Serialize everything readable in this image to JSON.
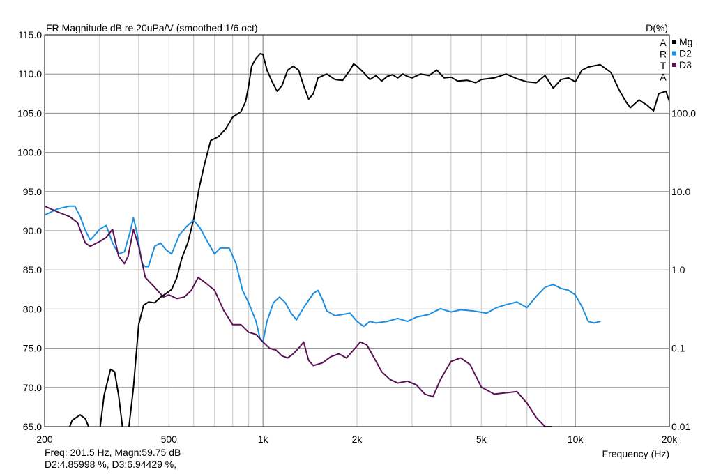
{
  "chart_data": {
    "type": "line",
    "title": "FR Magnitude dB re 20uPa/V (smoothed 1/6 oct)",
    "xlabel": "Frequency (Hz)",
    "ylabel_left": "",
    "ylabel_right": "D(%)",
    "x_scale": "log",
    "xlim": [
      200,
      20000
    ],
    "ylim": [
      65,
      115
    ],
    "y2_scale": "log",
    "y2lim": [
      0.01,
      1000
    ],
    "grid": true,
    "legend_position": "top-right",
    "x_ticks": [
      {
        "value": 200,
        "label": "200"
      },
      {
        "value": 500,
        "label": "500"
      },
      {
        "value": 1000,
        "label": "1k"
      },
      {
        "value": 2000,
        "label": "2k"
      },
      {
        "value": 5000,
        "label": "5k"
      },
      {
        "value": 10000,
        "label": "10k"
      },
      {
        "value": 20000,
        "label": "20k"
      }
    ],
    "y_ticks": [
      "65.0",
      "70.0",
      "75.0",
      "80.0",
      "85.0",
      "90.0",
      "95.0",
      "100.0",
      "105.0",
      "110.0",
      "115.0"
    ],
    "y2_ticks": [
      {
        "value": 0.01,
        "label": "0.01"
      },
      {
        "value": 0.1,
        "label": "0.1"
      },
      {
        "value": 1,
        "label": "1.0"
      },
      {
        "value": 10,
        "label": "10.0"
      },
      {
        "value": 100,
        "label": "100.0"
      }
    ],
    "watermark": [
      "A",
      "R",
      "T",
      "A"
    ],
    "series": [
      {
        "name": "Mg",
        "color": "#000000",
        "axis": "left",
        "points": [
          [
            200,
            61
          ],
          [
            230,
            63
          ],
          [
            245,
            65.8
          ],
          [
            260,
            66.5
          ],
          [
            270,
            66
          ],
          [
            280,
            64.5
          ],
          [
            295,
            62
          ],
          [
            310,
            69
          ],
          [
            325,
            72.3
          ],
          [
            335,
            72
          ],
          [
            345,
            69
          ],
          [
            355,
            65
          ],
          [
            370,
            64
          ],
          [
            385,
            70
          ],
          [
            400,
            78
          ],
          [
            415,
            80.5
          ],
          [
            430,
            80.9
          ],
          [
            450,
            80.8
          ],
          [
            470,
            81.5
          ],
          [
            490,
            82
          ],
          [
            510,
            82.5
          ],
          [
            530,
            84
          ],
          [
            550,
            86.5
          ],
          [
            575,
            88.5
          ],
          [
            600,
            91.5
          ],
          [
            625,
            95.5
          ],
          [
            650,
            98.5
          ],
          [
            680,
            101.5
          ],
          [
            720,
            102
          ],
          [
            760,
            103
          ],
          [
            800,
            104.5
          ],
          [
            850,
            105.2
          ],
          [
            880,
            106.5
          ],
          [
            900,
            108.5
          ],
          [
            920,
            111
          ],
          [
            950,
            112
          ],
          [
            980,
            112.6
          ],
          [
            1000,
            112.5
          ],
          [
            1030,
            110.5
          ],
          [
            1070,
            109
          ],
          [
            1110,
            107.8
          ],
          [
            1150,
            108.5
          ],
          [
            1200,
            110.5
          ],
          [
            1250,
            111
          ],
          [
            1300,
            110.5
          ],
          [
            1350,
            108.5
          ],
          [
            1400,
            106.8
          ],
          [
            1450,
            107.5
          ],
          [
            1500,
            109.5
          ],
          [
            1600,
            110
          ],
          [
            1700,
            109.3
          ],
          [
            1800,
            109.2
          ],
          [
            1900,
            110.5
          ],
          [
            1950,
            111.3
          ],
          [
            2000,
            111
          ],
          [
            2100,
            110.2
          ],
          [
            2200,
            109.3
          ],
          [
            2300,
            109.8
          ],
          [
            2400,
            109.1
          ],
          [
            2500,
            109.7
          ],
          [
            2600,
            109.9
          ],
          [
            2700,
            109.5
          ],
          [
            2800,
            110
          ],
          [
            2900,
            109.7
          ],
          [
            3000,
            109.5
          ],
          [
            3200,
            110
          ],
          [
            3400,
            109.8
          ],
          [
            3600,
            110.5
          ],
          [
            3800,
            109.5
          ],
          [
            4000,
            109.6
          ],
          [
            4200,
            109.1
          ],
          [
            4500,
            109.2
          ],
          [
            4800,
            108.9
          ],
          [
            5000,
            109.3
          ],
          [
            5500,
            109.5
          ],
          [
            6000,
            110
          ],
          [
            6500,
            109.4
          ],
          [
            7000,
            109
          ],
          [
            7500,
            108.9
          ],
          [
            8000,
            109.8
          ],
          [
            8500,
            108.2
          ],
          [
            9000,
            109.3
          ],
          [
            9500,
            109.5
          ],
          [
            10000,
            109
          ],
          [
            10500,
            110.5
          ],
          [
            11000,
            110.9
          ],
          [
            12000,
            111.2
          ],
          [
            13000,
            110.2
          ],
          [
            13800,
            108
          ],
          [
            14500,
            106.5
          ],
          [
            15000,
            105.7
          ],
          [
            16000,
            106.7
          ],
          [
            17000,
            106
          ],
          [
            17800,
            105.3
          ],
          [
            18500,
            107.5
          ],
          [
            19500,
            107.8
          ],
          [
            20000,
            106.5
          ]
        ]
      },
      {
        "name": "D2",
        "color": "#1a8ee0",
        "axis": "right",
        "points": [
          [
            200,
            5
          ],
          [
            220,
            6
          ],
          [
            240,
            6.5
          ],
          [
            250,
            6.5
          ],
          [
            260,
            4.8
          ],
          [
            270,
            3.2
          ],
          [
            280,
            2.4
          ],
          [
            300,
            3.3
          ],
          [
            315,
            3.7
          ],
          [
            330,
            2.2
          ],
          [
            345,
            1.6
          ],
          [
            360,
            1.7
          ],
          [
            375,
            3
          ],
          [
            385,
            4.6
          ],
          [
            395,
            3
          ],
          [
            410,
            1.2
          ],
          [
            420,
            1.1
          ],
          [
            430,
            1.1
          ],
          [
            450,
            2
          ],
          [
            470,
            2.2
          ],
          [
            490,
            1.8
          ],
          [
            510,
            1.6
          ],
          [
            540,
            2.8
          ],
          [
            570,
            3.6
          ],
          [
            600,
            4.3
          ],
          [
            630,
            3.4
          ],
          [
            660,
            2.4
          ],
          [
            700,
            1.6
          ],
          [
            730,
            1.9
          ],
          [
            780,
            1.9
          ],
          [
            820,
            1.2
          ],
          [
            860,
            0.55
          ],
          [
            900,
            0.38
          ],
          [
            950,
            0.22
          ],
          [
            980,
            0.13
          ],
          [
            1000,
            0.12
          ],
          [
            1030,
            0.22
          ],
          [
            1080,
            0.38
          ],
          [
            1130,
            0.45
          ],
          [
            1180,
            0.38
          ],
          [
            1230,
            0.28
          ],
          [
            1280,
            0.23
          ],
          [
            1350,
            0.33
          ],
          [
            1450,
            0.5
          ],
          [
            1500,
            0.55
          ],
          [
            1550,
            0.42
          ],
          [
            1600,
            0.3
          ],
          [
            1700,
            0.26
          ],
          [
            1900,
            0.28
          ],
          [
            2000,
            0.22
          ],
          [
            2100,
            0.19
          ],
          [
            2200,
            0.22
          ],
          [
            2300,
            0.21
          ],
          [
            2500,
            0.22
          ],
          [
            2700,
            0.24
          ],
          [
            2900,
            0.22
          ],
          [
            3100,
            0.25
          ],
          [
            3400,
            0.27
          ],
          [
            3700,
            0.32
          ],
          [
            4000,
            0.29
          ],
          [
            4300,
            0.31
          ],
          [
            4700,
            0.3
          ],
          [
            5200,
            0.28
          ],
          [
            5600,
            0.33
          ],
          [
            6000,
            0.36
          ],
          [
            6500,
            0.39
          ],
          [
            7000,
            0.33
          ],
          [
            7500,
            0.46
          ],
          [
            8000,
            0.6
          ],
          [
            8500,
            0.65
          ],
          [
            9000,
            0.58
          ],
          [
            9500,
            0.55
          ],
          [
            10000,
            0.48
          ],
          [
            10500,
            0.34
          ],
          [
            11000,
            0.22
          ],
          [
            11500,
            0.21
          ],
          [
            12000,
            0.22
          ]
        ]
      },
      {
        "name": "D3",
        "color": "#5a1055",
        "axis": "right",
        "points": [
          [
            200,
            6.5
          ],
          [
            220,
            5.5
          ],
          [
            240,
            4.8
          ],
          [
            255,
            4
          ],
          [
            270,
            2.2
          ],
          [
            280,
            2
          ],
          [
            300,
            2.3
          ],
          [
            315,
            2.6
          ],
          [
            330,
            3.3
          ],
          [
            345,
            1.5
          ],
          [
            360,
            1.2
          ],
          [
            370,
            1.5
          ],
          [
            385,
            3.3
          ],
          [
            400,
            2
          ],
          [
            420,
            0.8
          ],
          [
            450,
            0.6
          ],
          [
            480,
            0.45
          ],
          [
            500,
            0.48
          ],
          [
            530,
            0.43
          ],
          [
            560,
            0.45
          ],
          [
            590,
            0.55
          ],
          [
            620,
            0.8
          ],
          [
            650,
            0.7
          ],
          [
            700,
            0.55
          ],
          [
            750,
            0.3
          ],
          [
            800,
            0.2
          ],
          [
            850,
            0.2
          ],
          [
            900,
            0.16
          ],
          [
            950,
            0.15
          ],
          [
            1000,
            0.12
          ],
          [
            1050,
            0.1
          ],
          [
            1100,
            0.095
          ],
          [
            1150,
            0.08
          ],
          [
            1200,
            0.075
          ],
          [
            1250,
            0.085
          ],
          [
            1300,
            0.1
          ],
          [
            1350,
            0.12
          ],
          [
            1400,
            0.07
          ],
          [
            1450,
            0.06
          ],
          [
            1550,
            0.065
          ],
          [
            1650,
            0.078
          ],
          [
            1750,
            0.085
          ],
          [
            1850,
            0.075
          ],
          [
            1950,
            0.095
          ],
          [
            2050,
            0.12
          ],
          [
            2150,
            0.11
          ],
          [
            2250,
            0.08
          ],
          [
            2400,
            0.05
          ],
          [
            2550,
            0.04
          ],
          [
            2700,
            0.036
          ],
          [
            2900,
            0.038
          ],
          [
            3100,
            0.034
          ],
          [
            3300,
            0.026
          ],
          [
            3500,
            0.024
          ],
          [
            3700,
            0.04
          ],
          [
            4000,
            0.068
          ],
          [
            4300,
            0.075
          ],
          [
            4600,
            0.062
          ],
          [
            5000,
            0.032
          ],
          [
            5500,
            0.026
          ],
          [
            6000,
            0.027
          ],
          [
            6500,
            0.028
          ],
          [
            7000,
            0.02
          ],
          [
            7500,
            0.013
          ],
          [
            8000,
            0.01
          ],
          [
            8400,
            0.01
          ]
        ]
      }
    ],
    "readout": {
      "line1": "Freq: 201.5 Hz, Magn:59.75 dB",
      "line2": "D2:4.85998 %, D3:6.94429 %,"
    }
  }
}
